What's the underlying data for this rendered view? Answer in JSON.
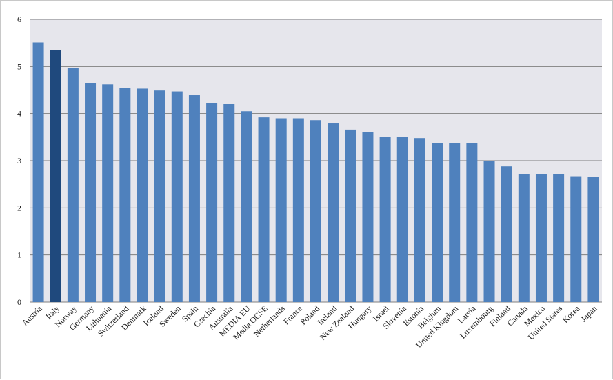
{
  "chart_data": {
    "type": "bar",
    "title": "",
    "xlabel": "",
    "ylabel": "",
    "ylim": [
      0,
      6
    ],
    "yticks": [
      0,
      1,
      2,
      3,
      4,
      5,
      6
    ],
    "grid": true,
    "legend": "none",
    "colors": {
      "bar": "#4f81bd",
      "highlight": "#1f497d",
      "plot_bg": "#e6e6ec",
      "grid": "#7f7f7f"
    },
    "highlight_category": "Italy",
    "categories": [
      "Austria",
      "Italy",
      "Norway",
      "Germany",
      "Lithuania",
      "Switzerland",
      "Denmark",
      "Iceland",
      "Sweden",
      "Spain",
      "Czechia",
      "Australia",
      "MEDIA EU",
      "Media OCSE",
      "Netherlands",
      "France",
      "Poland",
      "Ireland",
      "New Zealand",
      "Hungary",
      "Israel",
      "Slovenia",
      "Estonia",
      "Belgium",
      "United Kingdom",
      "Latvia",
      "Luxembourg",
      "Finland",
      "Canada",
      "Mexico",
      "United States",
      "Korea",
      "Japan"
    ],
    "values": [
      5.51,
      5.35,
      4.97,
      4.65,
      4.62,
      4.55,
      4.53,
      4.49,
      4.47,
      4.39,
      4.22,
      4.2,
      4.05,
      3.92,
      3.9,
      3.9,
      3.86,
      3.79,
      3.66,
      3.61,
      3.51,
      3.5,
      3.48,
      3.37,
      3.37,
      3.37,
      3.0,
      2.88,
      2.72,
      2.72,
      2.72,
      2.67,
      2.65
    ]
  }
}
